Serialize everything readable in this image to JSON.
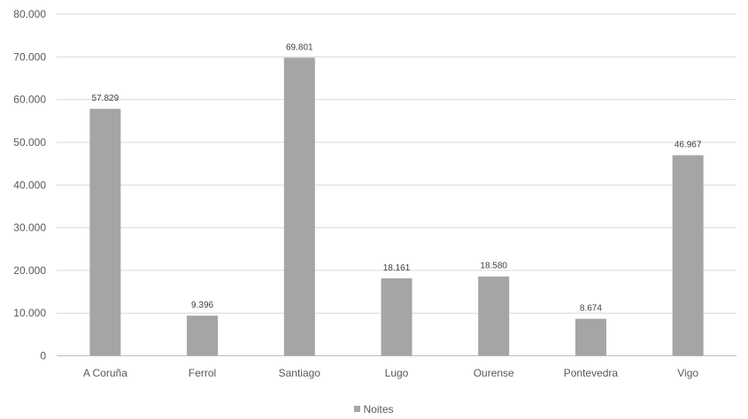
{
  "chart_data": {
    "type": "bar",
    "categories": [
      "A Coruña",
      "Ferrol",
      "Santiago",
      "Lugo",
      "Ourense",
      "Pontevedra",
      "Vigo"
    ],
    "series": [
      {
        "name": "Noites",
        "values": [
          57829,
          9396,
          69801,
          18161,
          18580,
          8674,
          46967
        ],
        "data_labels": [
          "57.829",
          "9.396",
          "69.801",
          "18.161",
          "18.580",
          "8.674",
          "46.967"
        ],
        "color": "#a5a5a5"
      }
    ],
    "ylim": [
      0,
      80000
    ],
    "y_ticks": [
      0,
      10000,
      20000,
      30000,
      40000,
      50000,
      60000,
      70000,
      80000
    ],
    "y_tick_labels": [
      "0",
      "10.000",
      "20.000",
      "30.000",
      "40.000",
      "50.000",
      "60.000",
      "70.000",
      "80.000"
    ],
    "grid": true,
    "legend_position": "bottom",
    "gridline_color": "#d9d9d9"
  }
}
